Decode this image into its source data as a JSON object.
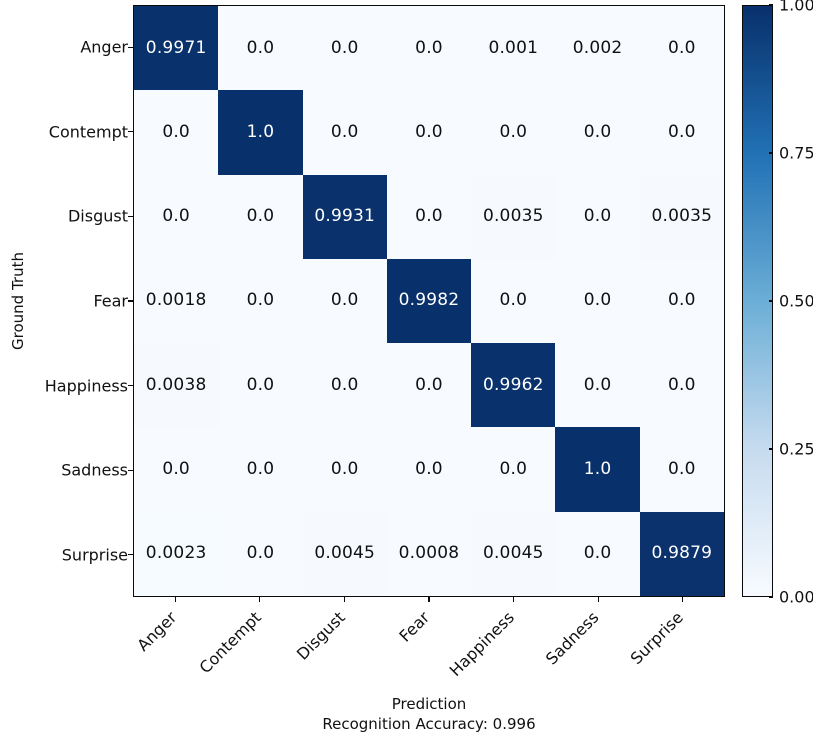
{
  "chart_data": {
    "type": "heatmap",
    "xlabel": "Prediction",
    "ylabel": "Ground Truth",
    "footer": "Recognition Accuracy: 0.996",
    "categories": [
      "Anger",
      "Contempt",
      "Disgust",
      "Fear",
      "Happiness",
      "Sadness",
      "Surprise"
    ],
    "matrix": [
      [
        "0.9971",
        "0.0",
        "0.0",
        "0.0",
        "0.001",
        "0.002",
        "0.0"
      ],
      [
        "0.0",
        "1.0",
        "0.0",
        "0.0",
        "0.0",
        "0.0",
        "0.0"
      ],
      [
        "0.0",
        "0.0",
        "0.9931",
        "0.0",
        "0.0035",
        "0.0",
        "0.0035"
      ],
      [
        "0.0018",
        "0.0",
        "0.0",
        "0.9982",
        "0.0",
        "0.0",
        "0.0"
      ],
      [
        "0.0038",
        "0.0",
        "0.0",
        "0.0",
        "0.9962",
        "0.0",
        "0.0"
      ],
      [
        "0.0",
        "0.0",
        "0.0",
        "0.0",
        "0.0",
        "1.0",
        "0.0"
      ],
      [
        "0.0023",
        "0.0",
        "0.0045",
        "0.0008",
        "0.0045",
        "0.0",
        "0.9879"
      ]
    ],
    "value_range": [
      0,
      1
    ],
    "grid": false,
    "legend_position": "right-colorbar",
    "colorbar": {
      "tick_labels": [
        "1.00",
        "0.75",
        "0.50",
        "0.25",
        "0.00"
      ],
      "tick_values": [
        1.0,
        0.75,
        0.5,
        0.25,
        0.0
      ],
      "stops": [
        {
          "pos": 0.0,
          "color": "#f7fbff"
        },
        {
          "pos": 0.25,
          "color": "#c6dbef"
        },
        {
          "pos": 0.5,
          "color": "#6baed6"
        },
        {
          "pos": 0.75,
          "color": "#2171b5"
        },
        {
          "pos": 1.0,
          "color": "#08306b"
        }
      ]
    },
    "colors": {
      "low": "#f7fbff",
      "high": "#08306b",
      "text_on_light": "#111111",
      "text_on_dark": "#ffffff",
      "axis": "#0a0a0a"
    }
  }
}
